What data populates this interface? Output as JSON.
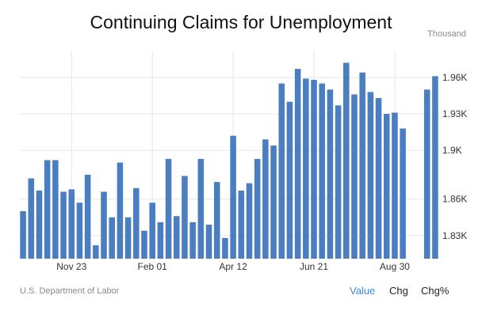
{
  "page": {
    "title": "Continuing Claims for Unemployment",
    "unit": "Thousand",
    "source": "U.S. Department of Labor",
    "tabs": [
      "Value",
      "Chg",
      "Chg%"
    ]
  },
  "colors": {
    "bar": "#4a7ec0",
    "grid": "#e6e6e6",
    "tick_text": "#333333",
    "active_tab": "#3a8fd6"
  },
  "chart_data": {
    "type": "bar",
    "title": "Continuing Claims for Unemployment",
    "ylabel": "Thousand",
    "ylim": [
      1811,
      1982
    ],
    "yticks": [
      1830,
      1860,
      1900,
      1930,
      1960
    ],
    "ytick_labels": [
      "1.83K",
      "1.86K",
      "1.9K",
      "1.93K",
      "1.96K"
    ],
    "xtick_labels": [
      {
        "label": "Nov 23",
        "index": 6
      },
      {
        "label": "Feb 01",
        "index": 16
      },
      {
        "label": "Apr 12",
        "index": 26
      },
      {
        "label": "Jun 21",
        "index": 36
      },
      {
        "label": "Aug 30",
        "index": 46
      }
    ],
    "grid": true,
    "values": [
      1850,
      1877,
      1867,
      1892,
      1892,
      1866,
      1868,
      1857,
      1880,
      1822,
      1866,
      1845,
      1890,
      1845,
      1869,
      1834,
      1857,
      1841,
      1893,
      1846,
      1879,
      1841,
      1893,
      1839,
      1874,
      1828,
      1912,
      1867,
      1873,
      1893,
      1909,
      1904,
      1955,
      1940,
      1967,
      1959,
      1958,
      1955,
      1950,
      1937,
      1972,
      1946,
      1964,
      1948,
      1943,
      1930,
      1931,
      1918,
      null,
      null,
      1950,
      1961
    ]
  }
}
